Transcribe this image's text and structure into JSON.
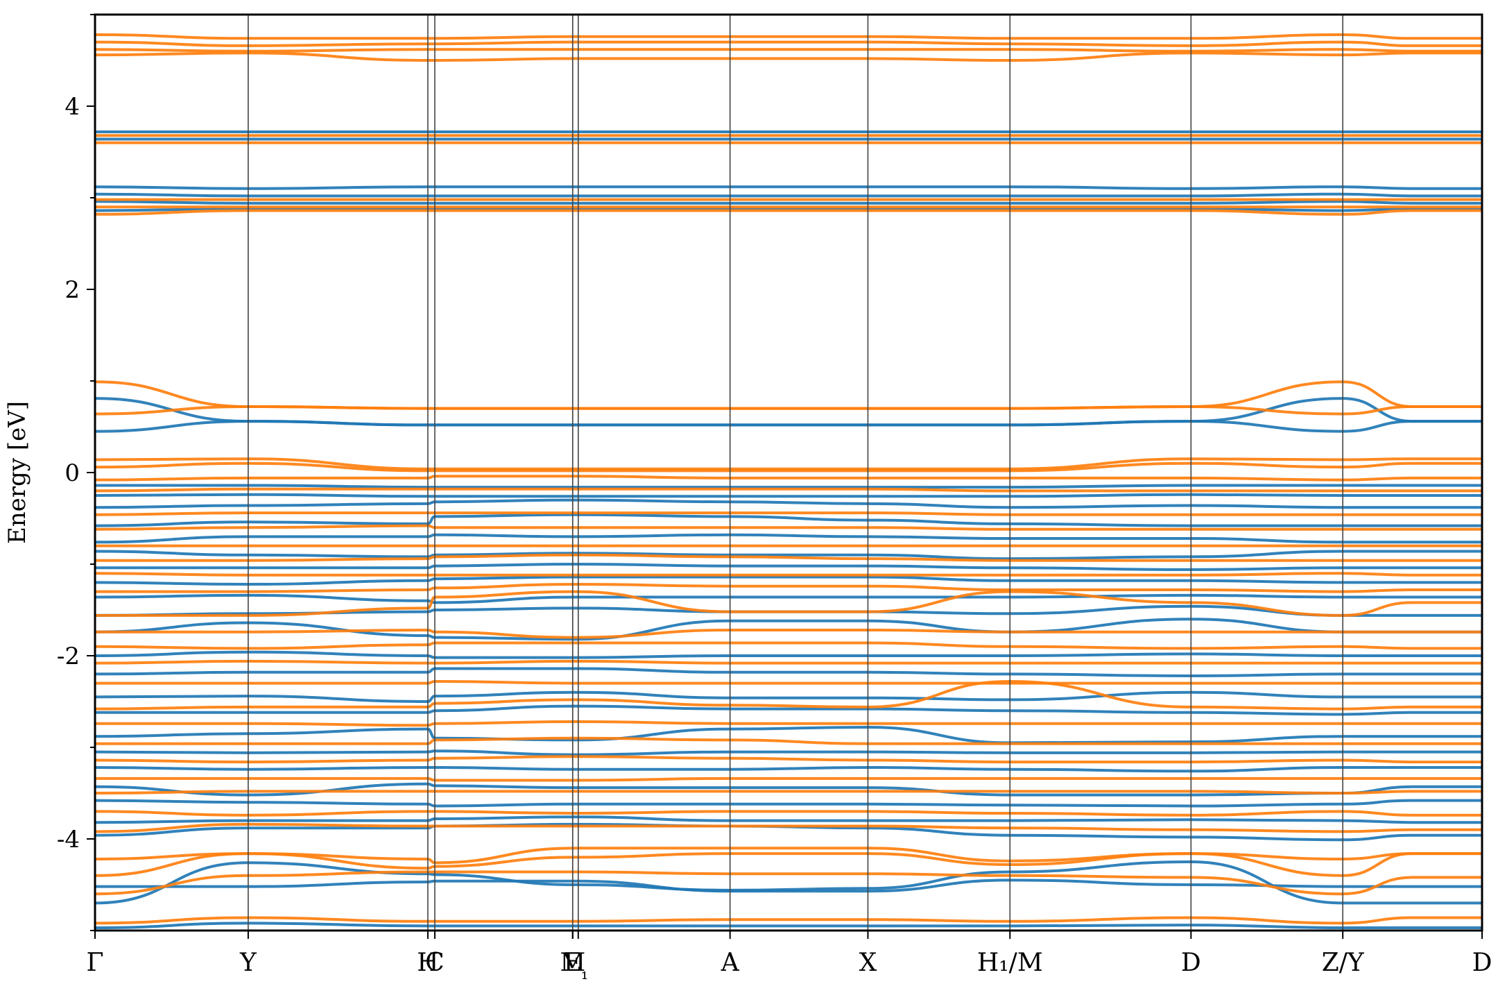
{
  "chart_data": {
    "type": "line",
    "title": "",
    "ylabel": "Energy [eV]",
    "xlabel": "",
    "ylim": [
      -5,
      5
    ],
    "yticks": [
      -4,
      -2,
      0,
      2,
      4
    ],
    "ytick_labels": [
      "-4",
      "-2",
      "0",
      "2",
      "4"
    ],
    "grid": false,
    "legend": "none",
    "high_symmetry_points": [
      {
        "label": "Γ",
        "x": 0.0
      },
      {
        "label": "Y",
        "x": 1.1
      },
      {
        "label": "H",
        "x": 2.39
      },
      {
        "label": "C",
        "x": 2.44
      },
      {
        "label": "E",
        "x": 3.43
      },
      {
        "label": "M",
        "x": 3.43
      },
      {
        "label": "₁",
        "x": 3.47
      },
      {
        "label": "A",
        "x": 4.56
      },
      {
        "label": "X",
        "x": 5.55
      },
      {
        "label": "H₁/M",
        "x": 6.57
      },
      {
        "label": "D",
        "x": 7.87
      },
      {
        "label": "Z/Y",
        "x": 8.96
      },
      {
        "label": "D",
        "x": 9.96
      }
    ],
    "xlim": [
      0,
      9.96
    ],
    "segment_breaks": [
      6.57,
      8.96
    ],
    "series": [
      {
        "color": "#1f77b4",
        "bands": [
          [
            -4.97,
            -4.92,
            -4.95,
            -4.95,
            -4.95,
            -4.95,
            -4.95,
            -4.95,
            -4.94,
            -4.97,
            -4.97,
            -4.97
          ],
          [
            -4.7,
            -4.26,
            -4.38,
            -4.39,
            -4.5,
            -4.56,
            -4.54,
            -4.36,
            -4.25,
            -4.7,
            -4.7,
            -4.7
          ],
          [
            -4.52,
            -4.52,
            -4.47,
            -4.46,
            -4.46,
            -4.57,
            -4.57,
            -4.45,
            -4.5,
            -4.52,
            -4.52,
            -4.52
          ],
          [
            -3.96,
            -3.88,
            -3.88,
            -3.86,
            -3.84,
            -3.86,
            -3.88,
            -3.96,
            -3.98,
            -4.01,
            -3.96,
            -3.96
          ],
          [
            -3.82,
            -3.8,
            -3.8,
            -3.78,
            -3.76,
            -3.8,
            -3.8,
            -3.8,
            -3.79,
            -3.8,
            -3.82,
            -3.82
          ],
          [
            -3.58,
            -3.6,
            -3.62,
            -3.64,
            -3.62,
            -3.62,
            -3.62,
            -3.63,
            -3.64,
            -3.62,
            -3.58,
            -3.58
          ],
          [
            -3.43,
            -3.52,
            -3.4,
            -3.42,
            -3.44,
            -3.44,
            -3.44,
            -3.52,
            -3.52,
            -3.5,
            -3.43,
            -3.43
          ],
          [
            -3.22,
            -3.24,
            -3.22,
            -3.22,
            -3.24,
            -3.24,
            -3.22,
            -3.24,
            -3.26,
            -3.22,
            -3.22,
            -3.22
          ],
          [
            -3.05,
            -3.06,
            -3.05,
            -3.04,
            -3.08,
            -3.05,
            -3.05,
            -3.06,
            -3.06,
            -3.05,
            -3.05,
            -3.05
          ],
          [
            -2.88,
            -2.85,
            -2.8,
            -2.9,
            -2.92,
            -2.8,
            -2.78,
            -2.95,
            -2.94,
            -2.88,
            -2.88,
            -2.88
          ],
          [
            -2.62,
            -2.62,
            -2.62,
            -2.6,
            -2.55,
            -2.58,
            -2.58,
            -2.6,
            -2.62,
            -2.64,
            -2.62,
            -2.62
          ],
          [
            -2.45,
            -2.44,
            -2.5,
            -2.44,
            -2.4,
            -2.46,
            -2.46,
            -2.48,
            -2.4,
            -2.45,
            -2.45,
            -2.45
          ],
          [
            -2.2,
            -2.18,
            -2.18,
            -2.14,
            -2.14,
            -2.18,
            -2.18,
            -2.2,
            -2.22,
            -2.2,
            -2.2,
            -2.2
          ],
          [
            -2.0,
            -1.96,
            -2.0,
            -2.02,
            -2.02,
            -2.0,
            -2.0,
            -2.0,
            -1.98,
            -2.0,
            -2.0,
            -2.0
          ],
          [
            -1.74,
            -1.64,
            -1.78,
            -1.8,
            -1.82,
            -1.62,
            -1.62,
            -1.74,
            -1.6,
            -1.74,
            -1.74,
            -1.74
          ],
          [
            -1.56,
            -1.54,
            -1.52,
            -1.5,
            -1.48,
            -1.52,
            -1.52,
            -1.54,
            -1.46,
            -1.56,
            -1.56,
            -1.56
          ],
          [
            -1.36,
            -1.34,
            -1.4,
            -1.42,
            -1.36,
            -1.36,
            -1.36,
            -1.36,
            -1.34,
            -1.36,
            -1.36,
            -1.36
          ],
          [
            -1.2,
            -1.22,
            -1.18,
            -1.16,
            -1.14,
            -1.14,
            -1.14,
            -1.18,
            -1.18,
            -1.2,
            -1.2,
            -1.2
          ],
          [
            -1.04,
            -1.04,
            -1.04,
            -1.02,
            -1.0,
            -1.02,
            -1.02,
            -1.04,
            -1.06,
            -1.04,
            -1.04,
            -1.04
          ],
          [
            -0.86,
            -0.9,
            -0.92,
            -0.9,
            -0.88,
            -0.9,
            -0.9,
            -0.94,
            -0.92,
            -0.86,
            -0.86,
            -0.86
          ],
          [
            -0.76,
            -0.7,
            -0.7,
            -0.68,
            -0.7,
            -0.68,
            -0.7,
            -0.72,
            -0.72,
            -0.76,
            -0.76,
            -0.76
          ],
          [
            -0.58,
            -0.54,
            -0.56,
            -0.48,
            -0.46,
            -0.48,
            -0.52,
            -0.56,
            -0.58,
            -0.58,
            -0.58,
            -0.58
          ],
          [
            -0.38,
            -0.36,
            -0.34,
            -0.32,
            -0.3,
            -0.32,
            -0.34,
            -0.38,
            -0.36,
            -0.38,
            -0.38,
            -0.38
          ],
          [
            -0.25,
            -0.24,
            -0.26,
            -0.26,
            -0.26,
            -0.26,
            -0.26,
            -0.26,
            -0.24,
            -0.25,
            -0.25,
            -0.25
          ],
          [
            -0.14,
            -0.14,
            -0.16,
            -0.16,
            -0.16,
            -0.16,
            -0.16,
            -0.16,
            -0.14,
            -0.14,
            -0.14,
            -0.14
          ],
          [
            0.45,
            0.56,
            0.52,
            0.52,
            0.52,
            0.52,
            0.52,
            0.52,
            0.56,
            0.45,
            0.56,
            0.56
          ],
          [
            0.81,
            0.56,
            0.52,
            0.52,
            0.52,
            0.52,
            0.52,
            0.52,
            0.56,
            0.81,
            0.56,
            0.56
          ],
          [
            2.86,
            2.88,
            2.88,
            2.88,
            2.88,
            2.88,
            2.88,
            2.88,
            2.88,
            2.86,
            2.88,
            2.88
          ],
          [
            2.96,
            2.94,
            2.94,
            2.94,
            2.94,
            2.94,
            2.94,
            2.94,
            2.94,
            2.96,
            2.94,
            2.94
          ],
          [
            3.04,
            3.02,
            3.02,
            3.02,
            3.02,
            3.02,
            3.02,
            3.02,
            3.02,
            3.04,
            3.02,
            3.02
          ],
          [
            3.12,
            3.1,
            3.12,
            3.12,
            3.12,
            3.12,
            3.12,
            3.12,
            3.1,
            3.12,
            3.1,
            3.1
          ],
          [
            3.64,
            3.64,
            3.64,
            3.64,
            3.64,
            3.64,
            3.64,
            3.64,
            3.64,
            3.64,
            3.64,
            3.64
          ],
          [
            3.72,
            3.72,
            3.72,
            3.72,
            3.72,
            3.72,
            3.72,
            3.72,
            3.72,
            3.72,
            3.72,
            3.72
          ]
        ]
      },
      {
        "color": "#ff7f0e",
        "bands": [
          [
            -4.92,
            -4.86,
            -4.9,
            -4.9,
            -4.9,
            -4.88,
            -4.88,
            -4.9,
            -4.86,
            -4.92,
            -4.86,
            -4.86
          ],
          [
            -4.6,
            -4.4,
            -4.36,
            -4.36,
            -4.36,
            -4.38,
            -4.38,
            -4.4,
            -4.42,
            -4.6,
            -4.42,
            -4.42
          ],
          [
            -4.4,
            -4.16,
            -4.32,
            -4.3,
            -4.2,
            -4.16,
            -4.16,
            -4.28,
            -4.16,
            -4.4,
            -4.16,
            -4.16
          ],
          [
            -4.22,
            -4.16,
            -4.22,
            -4.26,
            -4.1,
            -4.1,
            -4.1,
            -4.24,
            -4.16,
            -4.22,
            -4.16,
            -4.16
          ],
          [
            -3.92,
            -3.84,
            -3.86,
            -3.86,
            -3.86,
            -3.86,
            -3.86,
            -3.88,
            -3.9,
            -3.92,
            -3.9,
            -3.9
          ],
          [
            -3.7,
            -3.74,
            -3.7,
            -3.7,
            -3.72,
            -3.7,
            -3.7,
            -3.72,
            -3.74,
            -3.7,
            -3.74,
            -3.74
          ],
          [
            -3.5,
            -3.48,
            -3.48,
            -3.48,
            -3.48,
            -3.48,
            -3.48,
            -3.48,
            -3.48,
            -3.5,
            -3.48,
            -3.48
          ],
          [
            -3.34,
            -3.34,
            -3.34,
            -3.36,
            -3.36,
            -3.34,
            -3.34,
            -3.34,
            -3.34,
            -3.34,
            -3.34,
            -3.34
          ],
          [
            -3.14,
            -3.16,
            -3.14,
            -3.12,
            -3.1,
            -3.12,
            -3.14,
            -3.16,
            -3.16,
            -3.14,
            -3.16,
            -3.16
          ],
          [
            -2.96,
            -2.96,
            -2.96,
            -2.92,
            -2.9,
            -2.92,
            -2.96,
            -2.96,
            -2.96,
            -2.96,
            -2.96,
            -2.96
          ],
          [
            -2.74,
            -2.74,
            -2.76,
            -2.74,
            -2.72,
            -2.74,
            -2.74,
            -2.74,
            -2.74,
            -2.74,
            -2.74,
            -2.74
          ],
          [
            -2.58,
            -2.56,
            -2.56,
            -2.52,
            -2.48,
            -2.54,
            -2.56,
            -2.28,
            -2.56,
            -2.58,
            -2.56,
            -2.56
          ],
          [
            -2.3,
            -2.3,
            -2.3,
            -2.28,
            -2.3,
            -2.3,
            -2.3,
            -2.3,
            -2.3,
            -2.3,
            -2.3,
            -2.3
          ],
          [
            -2.08,
            -2.06,
            -2.08,
            -2.08,
            -2.06,
            -2.08,
            -2.08,
            -2.08,
            -2.08,
            -2.08,
            -2.08,
            -2.08
          ],
          [
            -1.9,
            -1.92,
            -1.88,
            -1.86,
            -1.86,
            -1.86,
            -1.86,
            -1.9,
            -1.92,
            -1.9,
            -1.92,
            -1.92
          ],
          [
            -1.74,
            -1.74,
            -1.72,
            -1.74,
            -1.8,
            -1.72,
            -1.72,
            -1.74,
            -1.74,
            -1.74,
            -1.74,
            -1.74
          ],
          [
            -1.56,
            -1.56,
            -1.48,
            -1.36,
            -1.3,
            -1.52,
            -1.52,
            -1.3,
            -1.42,
            -1.56,
            -1.42,
            -1.42
          ],
          [
            -1.3,
            -1.3,
            -1.28,
            -1.26,
            -1.22,
            -1.24,
            -1.24,
            -1.28,
            -1.28,
            -1.3,
            -1.28,
            -1.28
          ],
          [
            -1.1,
            -1.12,
            -1.12,
            -1.12,
            -1.12,
            -1.12,
            -1.12,
            -1.12,
            -1.12,
            -1.1,
            -1.12,
            -1.12
          ],
          [
            -0.96,
            -0.96,
            -0.94,
            -0.92,
            -0.9,
            -0.92,
            -0.94,
            -0.96,
            -0.96,
            -0.96,
            -0.96,
            -0.96
          ],
          [
            -0.8,
            -0.8,
            -0.8,
            -0.8,
            -0.8,
            -0.8,
            -0.8,
            -0.8,
            -0.8,
            -0.8,
            -0.8,
            -0.8
          ],
          [
            -0.62,
            -0.6,
            -0.58,
            -0.6,
            -0.6,
            -0.6,
            -0.6,
            -0.62,
            -0.62,
            -0.62,
            -0.62,
            -0.62
          ],
          [
            -0.46,
            -0.44,
            -0.44,
            -0.44,
            -0.44,
            -0.44,
            -0.44,
            -0.46,
            -0.46,
            -0.46,
            -0.46,
            -0.46
          ],
          [
            -0.2,
            -0.18,
            -0.18,
            -0.18,
            -0.18,
            -0.18,
            -0.18,
            -0.2,
            -0.2,
            -0.2,
            -0.2,
            -0.2
          ],
          [
            -0.08,
            -0.06,
            -0.06,
            -0.04,
            -0.04,
            -0.06,
            -0.06,
            -0.06,
            -0.06,
            -0.08,
            -0.06,
            -0.06
          ],
          [
            0.06,
            0.1,
            0.02,
            0.02,
            0.02,
            0.02,
            0.02,
            0.02,
            0.1,
            0.06,
            0.1,
            0.1
          ],
          [
            0.14,
            0.15,
            0.04,
            0.04,
            0.04,
            0.04,
            0.04,
            0.04,
            0.15,
            0.14,
            0.15,
            0.15
          ],
          [
            0.64,
            0.72,
            0.7,
            0.7,
            0.7,
            0.7,
            0.7,
            0.7,
            0.72,
            0.64,
            0.72,
            0.72
          ],
          [
            0.99,
            0.72,
            0.7,
            0.7,
            0.7,
            0.7,
            0.7,
            0.7,
            0.72,
            0.99,
            0.72,
            0.72
          ],
          [
            2.82,
            2.86,
            2.86,
            2.86,
            2.86,
            2.86,
            2.86,
            2.86,
            2.86,
            2.82,
            2.86,
            2.86
          ],
          [
            2.9,
            2.9,
            2.9,
            2.9,
            2.9,
            2.9,
            2.9,
            2.9,
            2.9,
            2.9,
            2.9,
            2.9
          ],
          [
            2.98,
            2.98,
            2.98,
            2.98,
            2.98,
            2.98,
            2.98,
            2.98,
            2.98,
            2.98,
            2.98,
            2.98
          ],
          [
            3.6,
            3.6,
            3.6,
            3.6,
            3.6,
            3.6,
            3.6,
            3.6,
            3.6,
            3.6,
            3.6,
            3.6
          ],
          [
            3.68,
            3.68,
            3.68,
            3.68,
            3.68,
            3.68,
            3.68,
            3.68,
            3.68,
            3.68,
            3.68,
            3.68
          ],
          [
            4.56,
            4.58,
            4.5,
            4.5,
            4.52,
            4.52,
            4.52,
            4.5,
            4.58,
            4.56,
            4.58,
            4.58
          ],
          [
            4.62,
            4.6,
            4.62,
            4.62,
            4.62,
            4.62,
            4.62,
            4.62,
            4.6,
            4.62,
            4.6,
            4.6
          ],
          [
            4.7,
            4.66,
            4.68,
            4.68,
            4.7,
            4.7,
            4.7,
            4.68,
            4.66,
            4.7,
            4.66,
            4.66
          ],
          [
            4.78,
            4.74,
            4.74,
            4.74,
            4.76,
            4.76,
            4.76,
            4.74,
            4.74,
            4.78,
            4.74,
            4.74
          ]
        ]
      }
    ]
  }
}
